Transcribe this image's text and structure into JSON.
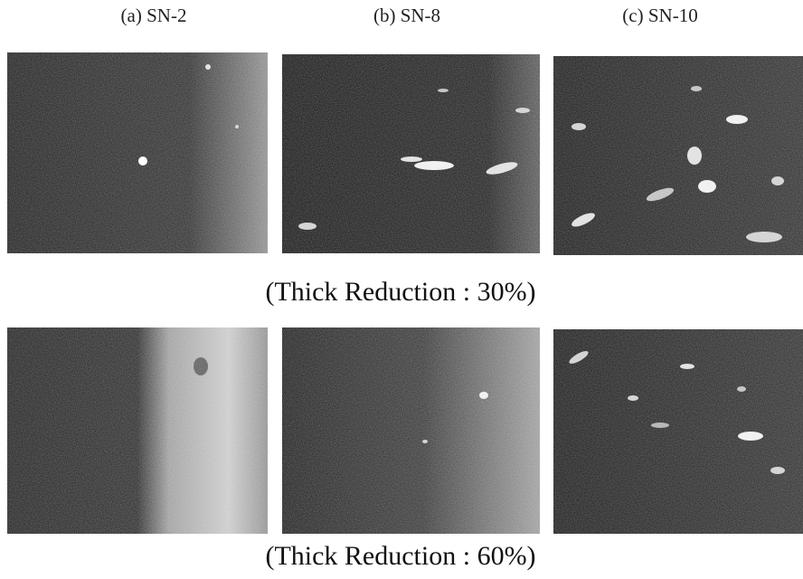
{
  "column_labels": [
    "(a) SN-2",
    "(b) SN-8",
    "(c) SN-10"
  ],
  "row_captions": [
    "(Thick Reduction : 30%)",
    "(Thick Reduction : 60%)"
  ]
}
